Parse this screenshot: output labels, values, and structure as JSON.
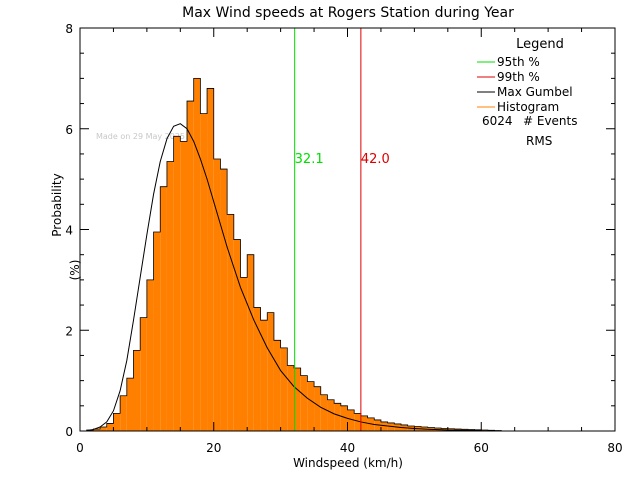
{
  "chart_data": {
    "type": "bar",
    "title": "Max Wind speeds at Rogers Station during Year",
    "xlabel": "Windspeed (km/h)",
    "ylabel": "Probability (%)",
    "xlim": [
      0,
      80
    ],
    "ylim": [
      0,
      8
    ],
    "xticks": [
      "0",
      "20",
      "40",
      "60",
      "80"
    ],
    "yticks": [
      "0",
      "2",
      "4",
      "6",
      "8"
    ],
    "watermark": "Made on 29 May 2025",
    "histogram": {
      "name": "Histogram",
      "color": "#ff8000",
      "bin_width": 1,
      "x_start": [
        1,
        2,
        3,
        4,
        5,
        6,
        7,
        8,
        9,
        10,
        11,
        12,
        13,
        14,
        15,
        16,
        17,
        18,
        19,
        20,
        21,
        22,
        23,
        24,
        25,
        26,
        27,
        28,
        29,
        30,
        31,
        32,
        33,
        34,
        35,
        36,
        37,
        38,
        39,
        40,
        41,
        42,
        43,
        44,
        45,
        46,
        47,
        48,
        49,
        50,
        51,
        52,
        53,
        54,
        55,
        56,
        57,
        58,
        59,
        60,
        61,
        62
      ],
      "values": [
        0.02,
        0.04,
        0.08,
        0.15,
        0.35,
        0.7,
        1.05,
        1.6,
        2.25,
        3.0,
        3.95,
        4.85,
        5.35,
        5.85,
        5.75,
        6.55,
        7.0,
        6.3,
        6.8,
        5.4,
        5.2,
        4.3,
        3.8,
        3.05,
        3.5,
        2.45,
        2.2,
        2.35,
        1.8,
        1.65,
        1.3,
        1.25,
        1.1,
        0.98,
        0.88,
        0.72,
        0.62,
        0.55,
        0.5,
        0.42,
        0.35,
        0.3,
        0.26,
        0.22,
        0.18,
        0.16,
        0.14,
        0.12,
        0.1,
        0.09,
        0.08,
        0.07,
        0.06,
        0.05,
        0.045,
        0.04,
        0.035,
        0.03,
        0.025,
        0.02,
        0.015,
        0.01
      ]
    },
    "gumbel_fit": {
      "name": "Max Gumbel",
      "color": "#000000",
      "x": [
        1,
        2,
        3,
        4,
        5,
        6,
        7,
        8,
        9,
        10,
        11,
        12,
        13,
        14,
        15,
        16,
        17,
        18,
        19,
        20,
        22,
        24,
        26,
        28,
        30,
        32,
        34,
        36,
        38,
        40,
        42,
        44,
        46,
        48,
        50,
        52,
        55,
        60
      ],
      "values": [
        0.01,
        0.03,
        0.08,
        0.18,
        0.4,
        0.8,
        1.4,
        2.2,
        3.05,
        3.9,
        4.7,
        5.35,
        5.8,
        6.05,
        6.1,
        6.0,
        5.75,
        5.4,
        5.0,
        4.55,
        3.65,
        2.85,
        2.2,
        1.65,
        1.2,
        0.88,
        0.65,
        0.47,
        0.34,
        0.25,
        0.18,
        0.13,
        0.1,
        0.07,
        0.05,
        0.035,
        0.02,
        0.01
      ]
    },
    "markers": [
      {
        "name": "95th %",
        "x": 32.1,
        "label": "32.1",
        "color": "#00dd00"
      },
      {
        "name": "99th %",
        "x": 42.0,
        "label": "42.0",
        "color": "#dd0000"
      }
    ],
    "legend": {
      "title": "Legend",
      "position": "top-right",
      "items": [
        {
          "label": "95th %",
          "color": "#00dd00"
        },
        {
          "label": "99th %",
          "color": "#dd0000"
        },
        {
          "label": "Max Gumbel",
          "color": "#000000"
        },
        {
          "label": "Histogram",
          "color": "#ff8000"
        }
      ],
      "events_count": "6024",
      "events_label": "# Events",
      "rms_label": "RMS"
    }
  }
}
